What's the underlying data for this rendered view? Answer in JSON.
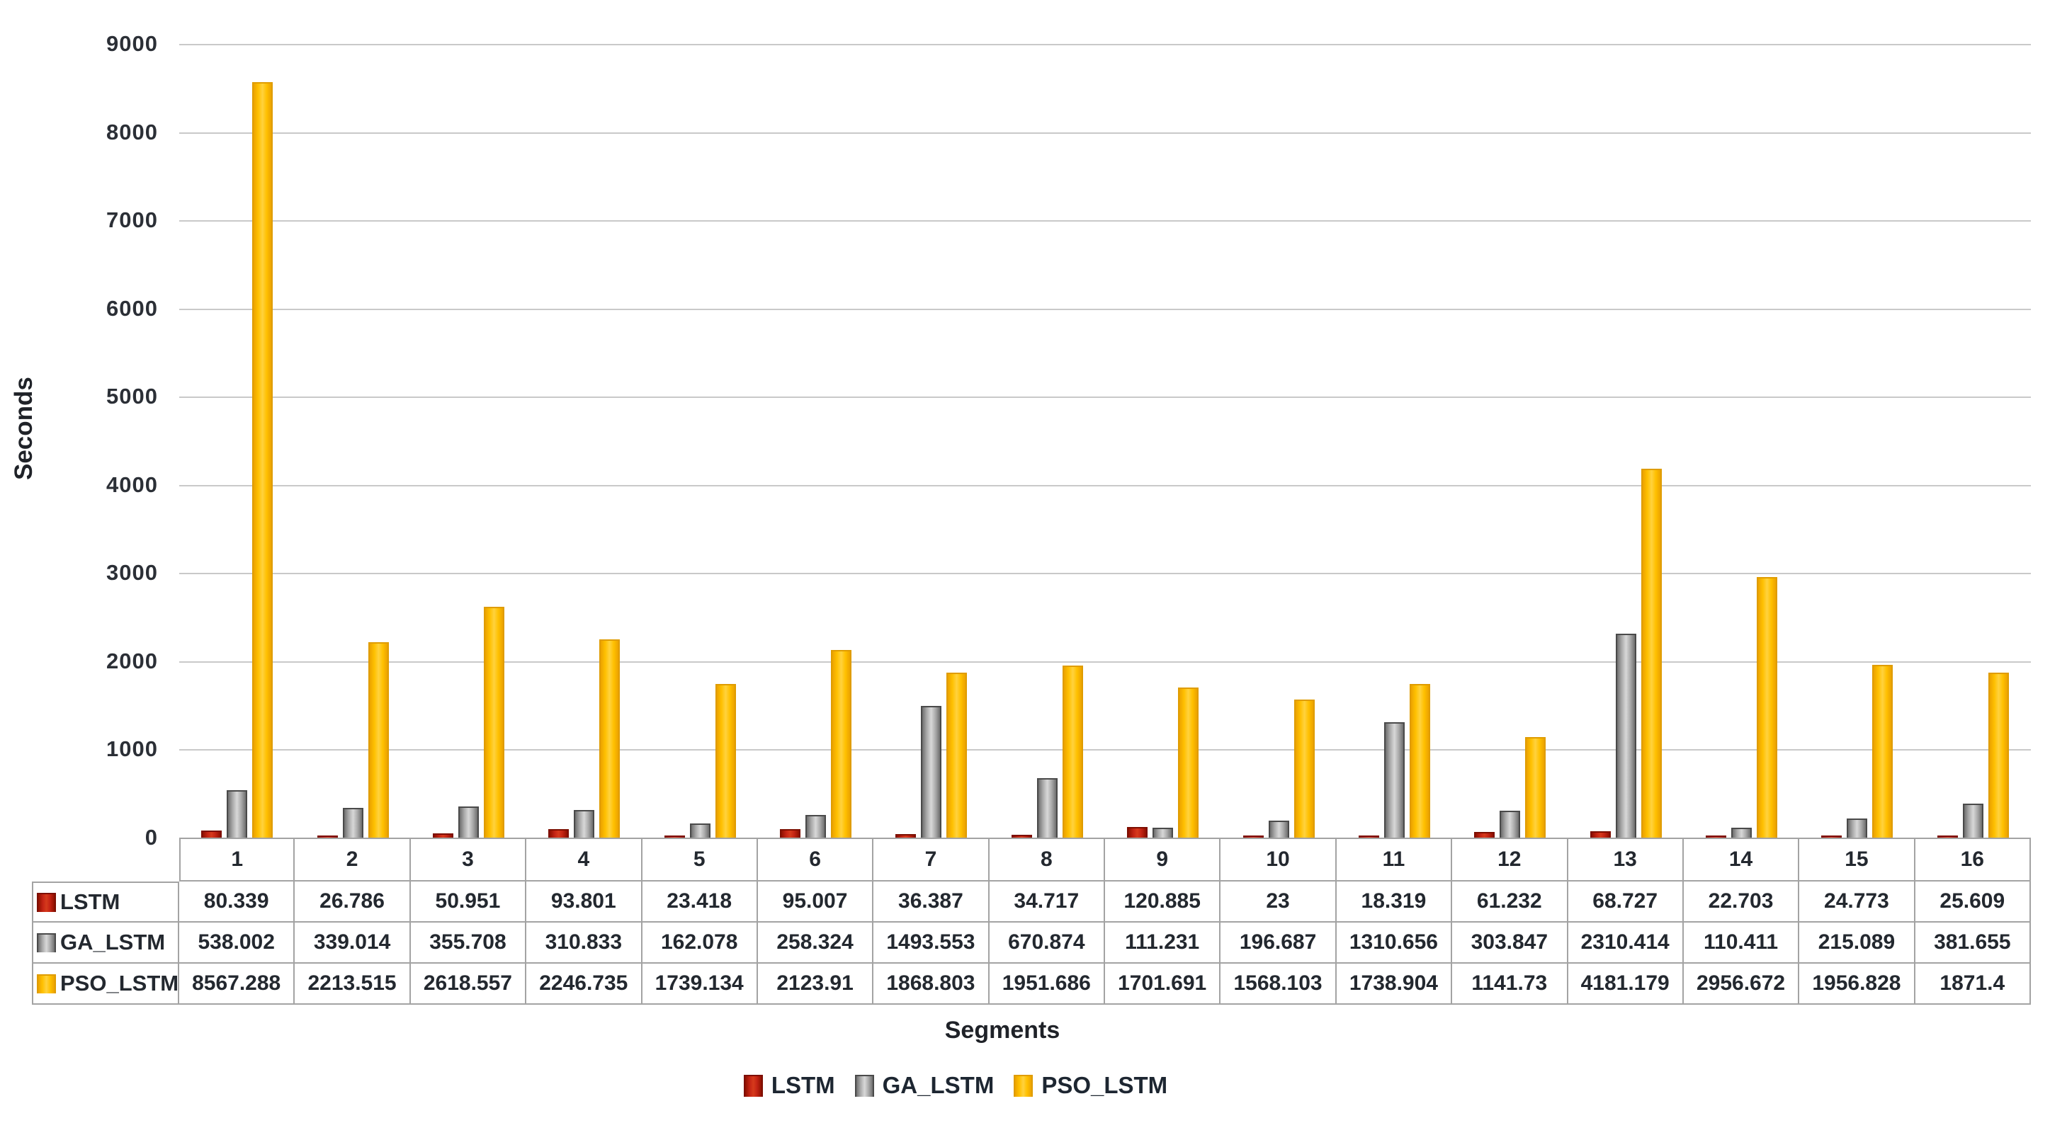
{
  "chart_data": {
    "type": "bar",
    "title": "",
    "ylabel": "Seconds",
    "xlabel": "Segments",
    "categories": [
      "1",
      "2",
      "3",
      "4",
      "5",
      "6",
      "7",
      "8",
      "9",
      "10",
      "11",
      "12",
      "13",
      "14",
      "15",
      "16"
    ],
    "y_ticks": [
      0,
      1000,
      2000,
      3000,
      4000,
      5000,
      6000,
      7000,
      8000,
      9000
    ],
    "ylim": [
      0,
      9000
    ],
    "grid": true,
    "legend_position": "bottom",
    "has_data_table": true,
    "series": [
      {
        "name": "LSTM",
        "color": "#c42414",
        "values": [
          80.339,
          26.786,
          50.951,
          93.801,
          23.418,
          95.007,
          36.387,
          34.717,
          120.885,
          23,
          18.319,
          61.232,
          68.727,
          22.703,
          24.773,
          25.609
        ]
      },
      {
        "name": "GA_LSTM",
        "color": "#a6a6a6",
        "values": [
          538.002,
          339.014,
          355.708,
          310.833,
          162.078,
          258.324,
          1493.553,
          670.874,
          111.231,
          196.687,
          1310.656,
          303.847,
          2310.414,
          110.411,
          215.089,
          381.655
        ]
      },
      {
        "name": "PSO_LSTM",
        "color": "#ffc000",
        "values": [
          8567.288,
          2213.515,
          2618.557,
          2246.735,
          1739.134,
          2123.91,
          1868.803,
          1951.686,
          1701.691,
          1568.103,
          1738.904,
          1141.73,
          4181.179,
          2956.672,
          1956.828,
          1871.4
        ]
      }
    ],
    "grid_color": "#c9c9c9",
    "table_border_color": "#a3a3a3"
  }
}
